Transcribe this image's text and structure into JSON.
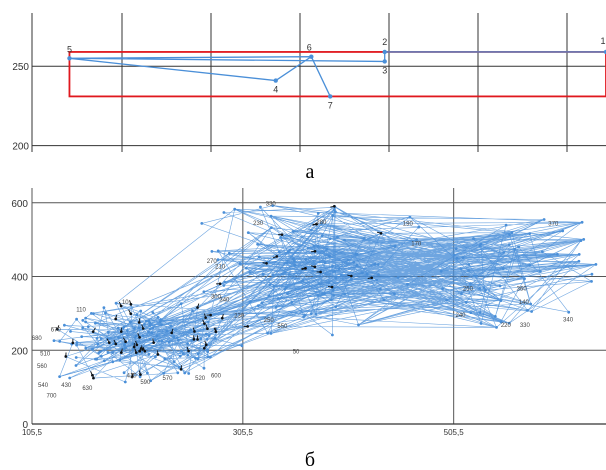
{
  "figure": {
    "caption_a": "a",
    "caption_b": "б"
  },
  "colors": {
    "line": "#4a8fd8",
    "box": "#e0181e",
    "grid": "#333333",
    "arrow": "#111111"
  },
  "chart_data": [
    {
      "id": "a",
      "type": "line",
      "caption": "a",
      "title": "",
      "xlabel": "",
      "ylabel": "",
      "xlim": [
        0,
        100
      ],
      "ylim": [
        196,
        281
      ],
      "yticks": [
        200,
        250
      ],
      "grid": true,
      "legend": "none",
      "points": [
        {
          "label": "5",
          "x": 3.5,
          "y": 255
        },
        {
          "label": "6",
          "x": 47,
          "y": 256
        },
        {
          "label": "4",
          "x": 40.6,
          "y": 241
        },
        {
          "label": "7",
          "x": 50.4,
          "y": 231
        },
        {
          "label": "3",
          "x": 60.2,
          "y": 253
        },
        {
          "label": "2",
          "x": 60.2,
          "y": 259
        },
        {
          "label": "1",
          "x": 100,
          "y": 259
        }
      ],
      "path": [
        "5",
        "6",
        "4",
        "5",
        "3",
        "2",
        "1"
      ],
      "extra_segments": [
        [
          "6",
          "7"
        ]
      ],
      "highlight_rect": {
        "x0": 3.5,
        "x1": 100,
        "y0": 231,
        "y1": 259
      }
    },
    {
      "id": "b",
      "type": "line",
      "caption": "б",
      "title": "",
      "xlabel": "",
      "ylabel": "",
      "xlim": [
        105.5,
        650
      ],
      "ylim": [
        0,
        640
      ],
      "xticks": [
        105.5,
        305.5,
        505.5
      ],
      "xtick_labels": [
        "105,5",
        "305,5",
        "505,5"
      ],
      "yticks": [
        0,
        200,
        400,
        600
      ],
      "grid": true,
      "legend": "none",
      "clusters": [
        {
          "name": "low",
          "x_range": [
            118,
            300
          ],
          "y_range": [
            110,
            330
          ],
          "points": 170
        },
        {
          "name": "high",
          "x_range": [
            270,
            470
          ],
          "y_range": [
            240,
            620
          ],
          "points": 130
        },
        {
          "name": "right",
          "x_range": [
            450,
            650
          ],
          "y_range": [
            260,
            580
          ],
          "points": 60
        }
      ],
      "cross_links": 130,
      "data_labels": [
        {
          "text": "330",
          "x": 332,
          "y": 593
        },
        {
          "text": "230",
          "x": 320,
          "y": 540
        },
        {
          "text": "280",
          "x": 380,
          "y": 543
        },
        {
          "text": "190",
          "x": 462,
          "y": 538
        },
        {
          "text": "370",
          "x": 600,
          "y": 538
        },
        {
          "text": "170",
          "x": 470,
          "y": 484
        },
        {
          "text": "270",
          "x": 276,
          "y": 437
        },
        {
          "text": "210",
          "x": 284,
          "y": 422
        },
        {
          "text": "300",
          "x": 280,
          "y": 341
        },
        {
          "text": "340",
          "x": 288,
          "y": 332
        },
        {
          "text": "250",
          "x": 519,
          "y": 362
        },
        {
          "text": "360",
          "x": 570,
          "y": 362
        },
        {
          "text": "140",
          "x": 572,
          "y": 326
        },
        {
          "text": "240",
          "x": 512,
          "y": 290
        },
        {
          "text": "220",
          "x": 555,
          "y": 263
        },
        {
          "text": "330",
          "x": 573,
          "y": 263
        },
        {
          "text": "340",
          "x": 614,
          "y": 278
        },
        {
          "text": "230",
          "x": 302,
          "y": 289
        },
        {
          "text": "250",
          "x": 330,
          "y": 276
        },
        {
          "text": "550",
          "x": 343,
          "y": 260
        },
        {
          "text": "50",
          "x": 356,
          "y": 191
        },
        {
          "text": "10",
          "x": 194,
          "y": 326
        },
        {
          "text": "110",
          "x": 152,
          "y": 305
        },
        {
          "text": "670",
          "x": 128,
          "y": 251
        },
        {
          "text": "680",
          "x": 110,
          "y": 228
        },
        {
          "text": "510",
          "x": 118,
          "y": 186
        },
        {
          "text": "560",
          "x": 115,
          "y": 152
        },
        {
          "text": "540",
          "x": 116,
          "y": 101
        },
        {
          "text": "430",
          "x": 138,
          "y": 101
        },
        {
          "text": "630",
          "x": 158,
          "y": 92
        },
        {
          "text": "700",
          "x": 124,
          "y": 72
        },
        {
          "text": "410",
          "x": 200,
          "y": 126
        },
        {
          "text": "590",
          "x": 213,
          "y": 108
        },
        {
          "text": "570",
          "x": 234,
          "y": 120
        },
        {
          "text": "520",
          "x": 265,
          "y": 120
        },
        {
          "text": "600",
          "x": 280,
          "y": 126
        }
      ]
    }
  ]
}
